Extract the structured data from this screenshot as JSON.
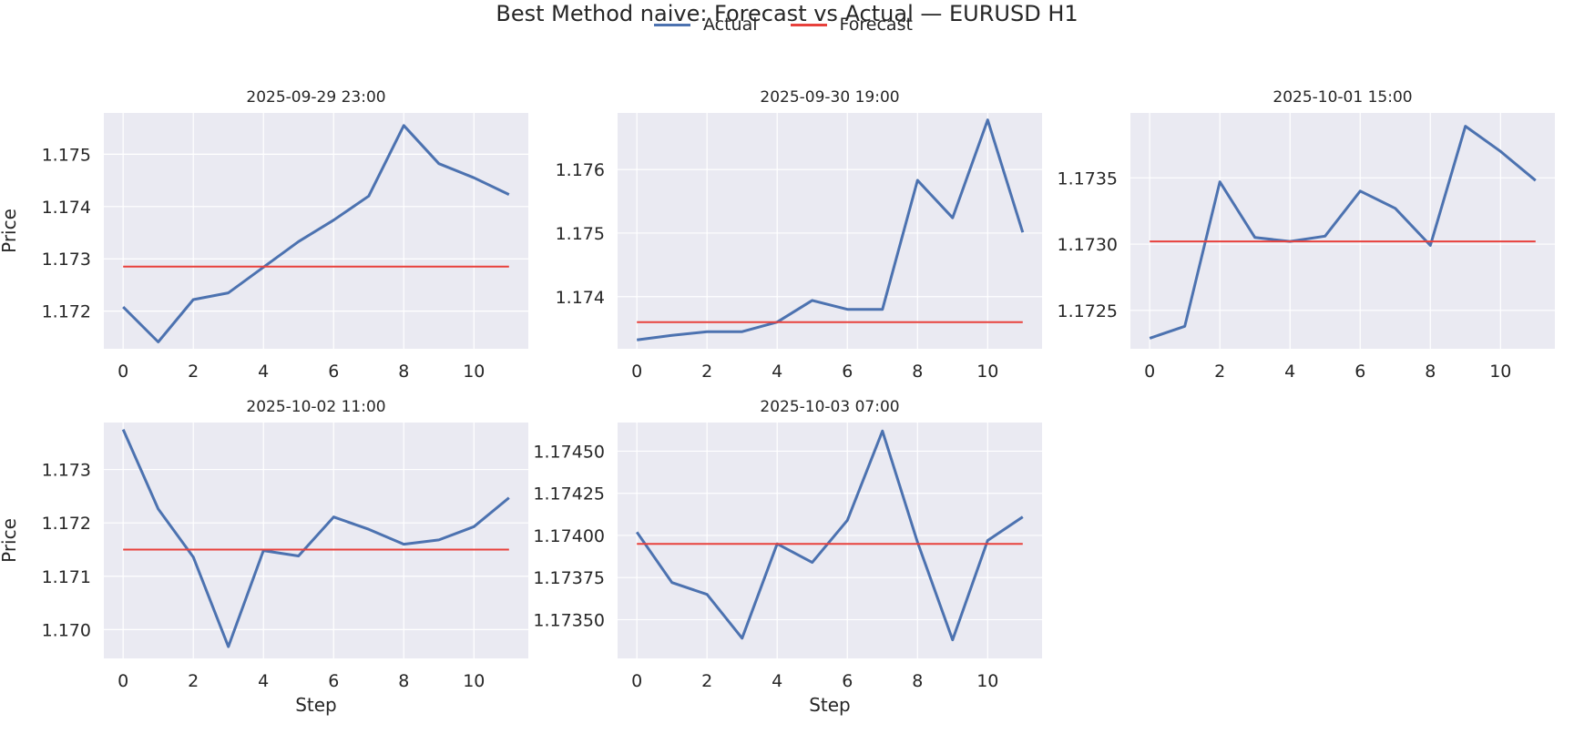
{
  "figure": {
    "title": "Best Method naive: Forecast vs Actual — EURUSD H1"
  },
  "legend": [
    {
      "name": "Actual",
      "color": "#4c72b0"
    },
    {
      "name": "Forecast",
      "color": "#e8413c"
    }
  ],
  "chart_data": [
    {
      "type": "line",
      "title": "2025-09-29 23:00",
      "xlabel": "",
      "ylabel": "Price",
      "xlim": [
        -0.55,
        11.55
      ],
      "ylim": [
        1.17128,
        1.17579
      ],
      "xticks": [
        0,
        2,
        4,
        6,
        8,
        10
      ],
      "yticks": [
        1.172,
        1.173,
        1.174,
        1.175
      ],
      "ytick_labels": [
        "1.172",
        "1.173",
        "1.174",
        "1.175"
      ],
      "grid": true,
      "x": [
        0,
        1,
        2,
        3,
        4,
        5,
        6,
        7,
        8,
        9,
        10,
        11
      ],
      "series": [
        {
          "name": "Actual",
          "values": [
            1.17208,
            1.17141,
            1.17222,
            1.17235,
            1.17284,
            1.17333,
            1.17374,
            1.1742,
            1.17555,
            1.17482,
            1.17455,
            1.17423
          ]
        },
        {
          "name": "Forecast",
          "values": [
            1.17285,
            1.17285,
            1.17285,
            1.17285,
            1.17285,
            1.17285,
            1.17285,
            1.17285,
            1.17285,
            1.17285,
            1.17285,
            1.17285
          ]
        }
      ]
    },
    {
      "type": "line",
      "title": "2025-09-30 19:00",
      "xlabel": "",
      "ylabel": "",
      "xlim": [
        -0.55,
        11.55
      ],
      "ylim": [
        1.17318,
        1.17689
      ],
      "xticks": [
        0,
        2,
        4,
        6,
        8,
        10
      ],
      "yticks": [
        1.174,
        1.175,
        1.176
      ],
      "ytick_labels": [
        "1.174",
        "1.175",
        "1.176"
      ],
      "grid": true,
      "x": [
        0,
        1,
        2,
        3,
        4,
        5,
        6,
        7,
        8,
        9,
        10,
        11
      ],
      "series": [
        {
          "name": "Actual",
          "values": [
            1.17332,
            1.17339,
            1.17345,
            1.17345,
            1.1736,
            1.17394,
            1.1738,
            1.1738,
            1.17583,
            1.17524,
            1.17678,
            1.17501
          ]
        },
        {
          "name": "Forecast",
          "values": [
            1.1736,
            1.1736,
            1.1736,
            1.1736,
            1.1736,
            1.1736,
            1.1736,
            1.1736,
            1.1736,
            1.1736,
            1.1736,
            1.1736
          ]
        }
      ]
    },
    {
      "type": "line",
      "title": "2025-10-01 15:00",
      "xlabel": "",
      "ylabel": "",
      "xlim": [
        -0.55,
        11.55
      ],
      "ylim": [
        1.17221,
        1.17399
      ],
      "xticks": [
        0,
        2,
        4,
        6,
        8,
        10
      ],
      "yticks": [
        1.1725,
        1.173,
        1.1735
      ],
      "ytick_labels": [
        "1.1725",
        "1.1730",
        "1.1735"
      ],
      "grid": true,
      "x": [
        0,
        1,
        2,
        3,
        4,
        5,
        6,
        7,
        8,
        9,
        10,
        11
      ],
      "series": [
        {
          "name": "Actual",
          "values": [
            1.17229,
            1.17238,
            1.17347,
            1.17305,
            1.17302,
            1.17306,
            1.1734,
            1.17327,
            1.17299,
            1.17389,
            1.1737,
            1.17348
          ]
        },
        {
          "name": "Forecast",
          "values": [
            1.17302,
            1.17302,
            1.17302,
            1.17302,
            1.17302,
            1.17302,
            1.17302,
            1.17302,
            1.17302,
            1.17302,
            1.17302,
            1.17302
          ]
        }
      ]
    },
    {
      "type": "line",
      "title": "2025-10-02 11:00",
      "xlabel": "Step",
      "ylabel": "Price",
      "xlim": [
        -0.55,
        11.55
      ],
      "ylim": [
        1.16946,
        1.17388
      ],
      "xticks": [
        0,
        2,
        4,
        6,
        8,
        10
      ],
      "yticks": [
        1.17,
        1.171,
        1.172,
        1.173
      ],
      "ytick_labels": [
        "1.170",
        "1.171",
        "1.172",
        "1.173"
      ],
      "grid": true,
      "x": [
        0,
        1,
        2,
        3,
        4,
        5,
        6,
        7,
        8,
        9,
        10,
        11
      ],
      "series": [
        {
          "name": "Actual",
          "values": [
            1.17375,
            1.17226,
            1.17136,
            1.16968,
            1.17148,
            1.17138,
            1.17211,
            1.17188,
            1.1716,
            1.17168,
            1.17193,
            1.17247
          ]
        },
        {
          "name": "Forecast",
          "values": [
            1.1715,
            1.1715,
            1.1715,
            1.1715,
            1.1715,
            1.1715,
            1.1715,
            1.1715,
            1.1715,
            1.1715,
            1.1715,
            1.1715
          ]
        }
      ]
    },
    {
      "type": "line",
      "title": "2025-10-03 07:00",
      "xlabel": "Step",
      "ylabel": "",
      "xlim": [
        -0.55,
        11.55
      ],
      "ylim": [
        1.17327,
        1.17467
      ],
      "xticks": [
        0,
        2,
        4,
        6,
        8,
        10
      ],
      "yticks": [
        1.1735,
        1.17375,
        1.174,
        1.17425,
        1.1745
      ],
      "ytick_labels": [
        "1.17350",
        "1.17375",
        "1.17400",
        "1.17425",
        "1.17450"
      ],
      "grid": true,
      "x": [
        0,
        1,
        2,
        3,
        4,
        5,
        6,
        7,
        8,
        9,
        10,
        11
      ],
      "series": [
        {
          "name": "Actual",
          "values": [
            1.17402,
            1.17372,
            1.17365,
            1.17339,
            1.17395,
            1.17384,
            1.17409,
            1.17462,
            1.17396,
            1.17338,
            1.17397,
            1.17411
          ]
        },
        {
          "name": "Forecast",
          "values": [
            1.17395,
            1.17395,
            1.17395,
            1.17395,
            1.17395,
            1.17395,
            1.17395,
            1.17395,
            1.17395,
            1.17395,
            1.17395,
            1.17395
          ]
        }
      ]
    }
  ]
}
